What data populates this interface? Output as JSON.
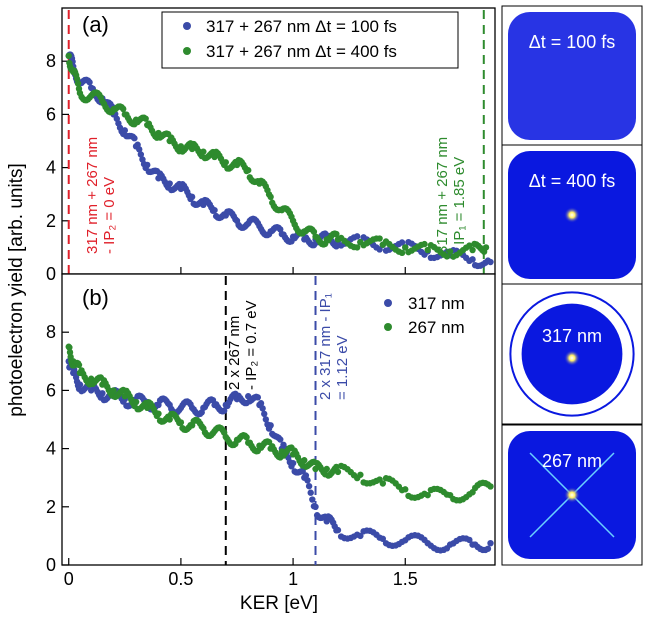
{
  "colors": {
    "blue": "#3b4ba8",
    "green": "#2e8b2e",
    "red": "#e0202a",
    "black": "#000000",
    "detector": "#0a18e0"
  },
  "axes": {
    "xlabel": "KER [eV]",
    "ylabel": "photoelectron yield [arb. units]"
  },
  "panels_text": [
    {
      "label": "(a)",
      "legend": [
        {
          "text": "317 + 267 nm  Δt = 100 fs"
        },
        {
          "text": "317 + 267 nm  Δt = 400 fs"
        }
      ],
      "annotations": [
        {
          "lines": [
            "317 nm + 267 nm",
            "- IP₂ = 0 eV"
          ],
          "color": "red"
        },
        {
          "lines": [
            "317 nm + 267 nm",
            "- IP₁ = 1.85 eV"
          ],
          "color": "green"
        }
      ]
    },
    {
      "label": "(b)",
      "legend": [
        {
          "text": "317 nm"
        },
        {
          "text": "267 nm"
        }
      ],
      "annotations": [
        {
          "lines": [
            "2 x 267 nm",
            "- IP₂ = 0.7 eV"
          ],
          "color": "black"
        },
        {
          "lines": [
            "2 x 317 nm - IP₁",
            "= 1.12 eV"
          ],
          "color": "blue"
        }
      ]
    }
  ],
  "images": [
    {
      "label": "Δt = 100 fs",
      "style": "diffuse"
    },
    {
      "label": "Δt = 400 fs",
      "style": "center-spot"
    },
    {
      "label": "317 nm",
      "style": "ring"
    },
    {
      "label": "267 nm",
      "style": "cross"
    }
  ],
  "chart_data": [
    {
      "type": "scatter",
      "title": "",
      "xlabel": "KER [eV]",
      "ylabel": "photoelectron yield [arb. units]",
      "xlim": [
        -0.03,
        1.9
      ],
      "ylim": [
        0,
        10
      ],
      "xticks": [
        0,
        0.5,
        1,
        1.5
      ],
      "yticks": [
        0,
        2,
        4,
        6,
        8
      ],
      "legend_position": "top-right",
      "series": [
        {
          "name": "317 + 267 nm  Δt = 100 fs",
          "color": "blue",
          "x": [
            0,
            0.02,
            0.05,
            0.1,
            0.15,
            0.2,
            0.25,
            0.3,
            0.35,
            0.4,
            0.45,
            0.5,
            0.55,
            0.6,
            0.65,
            0.7,
            0.75,
            0.8,
            0.85,
            0.9,
            0.95,
            1.0,
            1.05,
            1.1,
            1.15,
            1.2,
            1.3,
            1.4,
            1.5,
            1.6,
            1.7,
            1.8,
            1.88
          ],
          "y": [
            8.2,
            7.8,
            7.2,
            7.0,
            6.6,
            6.0,
            5.4,
            4.8,
            4.1,
            3.6,
            3.4,
            3.2,
            2.9,
            2.6,
            2.4,
            2.2,
            2.0,
            1.9,
            1.8,
            1.6,
            1.5,
            1.4,
            1.3,
            1.3,
            1.3,
            1.25,
            1.2,
            1.1,
            1.0,
            0.85,
            0.7,
            0.55,
            0.45
          ]
        },
        {
          "name": "317 + 267 nm  Δt = 400 fs",
          "color": "green",
          "x": [
            0,
            0.02,
            0.05,
            0.1,
            0.15,
            0.2,
            0.25,
            0.3,
            0.35,
            0.4,
            0.45,
            0.5,
            0.55,
            0.6,
            0.65,
            0.7,
            0.75,
            0.8,
            0.85,
            0.9,
            0.95,
            1.0,
            1.05,
            1.1,
            1.15,
            1.2,
            1.3,
            1.4,
            1.5,
            1.6,
            1.7,
            1.8,
            1.86
          ],
          "y": [
            8.2,
            7.6,
            6.8,
            6.7,
            6.5,
            6.2,
            6.0,
            5.8,
            5.6,
            5.3,
            5.0,
            4.8,
            4.7,
            4.6,
            4.4,
            4.2,
            4.1,
            3.9,
            3.4,
            2.9,
            2.4,
            2.0,
            1.6,
            1.4,
            1.3,
            1.3,
            1.2,
            1.1,
            1.0,
            0.9,
            0.85,
            0.9,
            1.0
          ]
        }
      ],
      "vlines": [
        {
          "x": 0.0,
          "color": "red"
        },
        {
          "x": 1.85,
          "color": "green"
        }
      ]
    },
    {
      "type": "scatter",
      "title": "",
      "xlabel": "KER [eV]",
      "ylabel": "photoelectron yield [arb. units]",
      "xlim": [
        -0.03,
        1.9
      ],
      "ylim": [
        0,
        10
      ],
      "xticks": [
        0,
        0.5,
        1,
        1.5
      ],
      "yticks": [
        0,
        2,
        4,
        6,
        8
      ],
      "legend_position": "top-right",
      "series": [
        {
          "name": "317 nm",
          "color": "blue",
          "x": [
            0,
            0.02,
            0.05,
            0.1,
            0.15,
            0.2,
            0.25,
            0.3,
            0.35,
            0.4,
            0.45,
            0.5,
            0.55,
            0.6,
            0.65,
            0.7,
            0.75,
            0.8,
            0.85,
            0.9,
            0.95,
            1.0,
            1.05,
            1.1,
            1.15,
            1.2,
            1.3,
            1.4,
            1.5,
            1.6,
            1.7,
            1.8,
            1.88
          ],
          "y": [
            7.0,
            6.6,
            6.2,
            6.0,
            5.9,
            5.8,
            5.7,
            5.6,
            5.6,
            5.5,
            5.5,
            5.4,
            5.4,
            5.4,
            5.5,
            5.5,
            5.7,
            5.8,
            5.5,
            4.8,
            4.0,
            3.5,
            3.0,
            2.0,
            1.5,
            1.2,
            1.0,
            0.9,
            0.85,
            0.75,
            0.7,
            0.7,
            0.75
          ]
        },
        {
          "name": "267 nm",
          "color": "green",
          "x": [
            0,
            0.02,
            0.05,
            0.1,
            0.15,
            0.2,
            0.25,
            0.3,
            0.35,
            0.4,
            0.45,
            0.5,
            0.55,
            0.6,
            0.65,
            0.7,
            0.75,
            0.8,
            0.85,
            0.9,
            0.95,
            1.0,
            1.05,
            1.1,
            1.15,
            1.2,
            1.3,
            1.4,
            1.5,
            1.6,
            1.7,
            1.8,
            1.88
          ],
          "y": [
            7.5,
            7.0,
            6.6,
            6.4,
            6.2,
            6.0,
            5.8,
            5.6,
            5.4,
            5.2,
            5.0,
            4.9,
            4.8,
            4.7,
            4.6,
            4.4,
            4.3,
            4.2,
            4.1,
            4.0,
            3.9,
            3.8,
            3.6,
            3.3,
            3.3,
            3.2,
            3.1,
            2.8,
            2.6,
            2.4,
            2.4,
            2.5,
            2.7
          ]
        }
      ],
      "vlines": [
        {
          "x": 0.7,
          "color": "black"
        },
        {
          "x": 1.1,
          "color": "blue"
        }
      ]
    }
  ]
}
